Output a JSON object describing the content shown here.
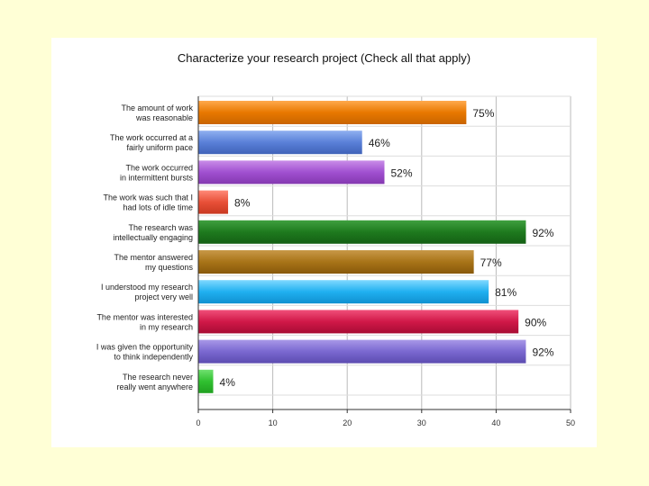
{
  "chart_data": {
    "type": "bar",
    "orientation": "horizontal",
    "title": "Characterize your research project (Check all that apply)",
    "xlabel": "",
    "ylabel": "",
    "xlim": [
      0,
      50
    ],
    "xticks": [
      0,
      10,
      20,
      30,
      40,
      50
    ],
    "grid": true,
    "legend": "none",
    "categories": [
      [
        "The amount of work",
        "was reasonable"
      ],
      [
        "The work occurred at a",
        "fairly uniform pace"
      ],
      [
        "The work occurred",
        "in intermittent bursts"
      ],
      [
        "The work was such that I",
        "had lots of idle time"
      ],
      [
        "The research was",
        "intellectually engaging"
      ],
      [
        "The mentor answered",
        "my questions"
      ],
      [
        "I understood my research",
        "project very well"
      ],
      [
        "The mentor was interested",
        "in my research"
      ],
      [
        "I was given the opportunity",
        "to think independently"
      ],
      [
        "The research never",
        "really went anywhere"
      ]
    ],
    "values": [
      36,
      22,
      25,
      4,
      44,
      37,
      39,
      43,
      44,
      2
    ],
    "data_labels": [
      "75%",
      "46%",
      "52%",
      "8%",
      "92%",
      "77%",
      "81%",
      "90%",
      "92%",
      "4%"
    ],
    "colors": [
      [
        "#FFA94D",
        "#E87800",
        "#C86400"
      ],
      [
        "#8FB0F0",
        "#5A80D8",
        "#3F62B8"
      ],
      [
        "#C98DE8",
        "#A050D0",
        "#8438B0"
      ],
      [
        "#FF8A78",
        "#E85038",
        "#C83820"
      ],
      [
        "#3FA03F",
        "#1E7A1E",
        "#156015"
      ],
      [
        "#C89848",
        "#A87418",
        "#88580A"
      ],
      [
        "#7FD8FF",
        "#20B0F0",
        "#1090D0"
      ],
      [
        "#F0507A",
        "#D01848",
        "#A80C34"
      ],
      [
        "#A898E8",
        "#7A68D0",
        "#5C4CB0"
      ],
      [
        "#6FE06F",
        "#30C030",
        "#20A020"
      ]
    ]
  }
}
